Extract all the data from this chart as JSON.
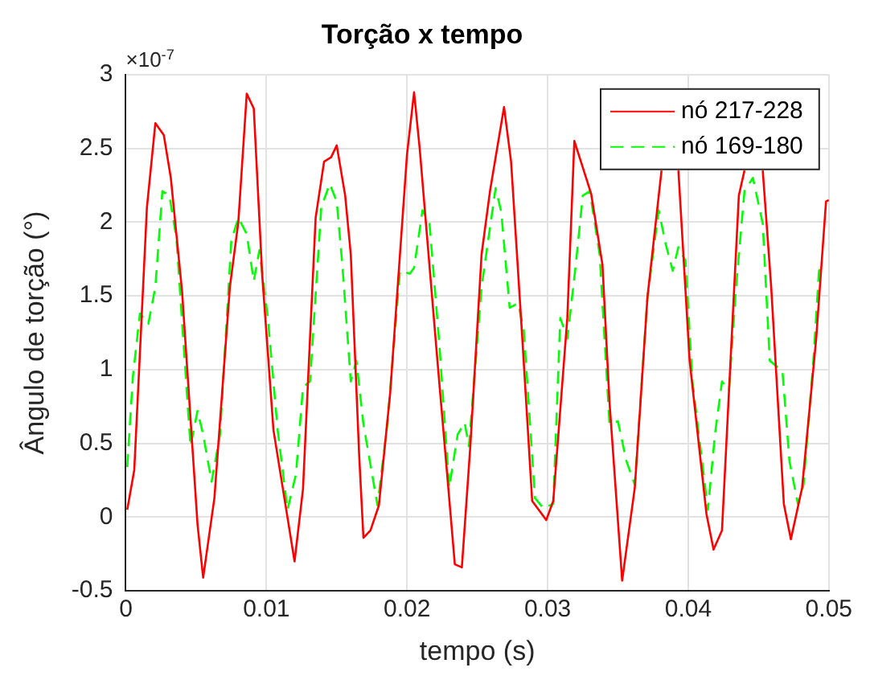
{
  "chart_data": {
    "type": "line",
    "title": "Torção x tempo",
    "xlabel": "tempo (s)",
    "ylabel": "Ângulo de torção (°)",
    "annotations": [
      "×10$^{-7}$"
    ],
    "xlim": [
      0,
      0.05
    ],
    "xticks": [
      0,
      0.01,
      0.02,
      0.03,
      0.04,
      0.05
    ],
    "ylim": [
      -0.5,
      3
    ],
    "yticks": [
      -0.5,
      0,
      0.5,
      1,
      1.5,
      2,
      2.5,
      3
    ],
    "grid": true,
    "legend": "top right",
    "marker": "none",
    "series": [
      {
        "name": "nó 217-228",
        "color": "#ff0000",
        "line_style": "solid",
        "x": [
          0.0001,
          0.0006,
          0.0015,
          0.0021,
          0.0027,
          0.0032,
          0.004,
          0.0051,
          0.0055,
          0.0063,
          0.0074,
          0.008,
          0.0086,
          0.0091,
          0.0097,
          0.0105,
          0.012,
          0.0126,
          0.0135,
          0.0141,
          0.0146,
          0.015,
          0.0156,
          0.016,
          0.0166,
          0.0169,
          0.0174,
          0.018,
          0.0188,
          0.02,
          0.0205,
          0.0209,
          0.0221,
          0.0234,
          0.0239,
          0.0245,
          0.0253,
          0.0259,
          0.0269,
          0.0274,
          0.0282,
          0.0289,
          0.0299,
          0.0304,
          0.0314,
          0.0319,
          0.0331,
          0.0339,
          0.0344,
          0.0353,
          0.0362,
          0.0371,
          0.0381,
          0.0387,
          0.0393,
          0.0401,
          0.0413,
          0.0418,
          0.0424,
          0.0436,
          0.044,
          0.0447,
          0.0453,
          0.0459,
          0.0468,
          0.0473,
          0.0481,
          0.0491,
          0.0498,
          0.05
        ],
        "values": [
          0.05,
          0.32,
          2.1,
          2.67,
          2.59,
          2.3,
          1.53,
          -0.05,
          -0.41,
          0.13,
          1.56,
          2.0,
          2.87,
          2.77,
          1.64,
          0.59,
          -0.3,
          0.19,
          2.03,
          2.41,
          2.44,
          2.52,
          2.18,
          1.78,
          0.41,
          -0.14,
          -0.09,
          0.08,
          0.84,
          2.46,
          2.88,
          2.5,
          1.13,
          -0.32,
          -0.34,
          0.48,
          1.78,
          2.21,
          2.78,
          2.41,
          1.21,
          0.11,
          -0.02,
          0.11,
          1.35,
          2.55,
          2.19,
          1.71,
          0.78,
          -0.43,
          0.2,
          1.49,
          2.35,
          null,
          2.35,
          1.06,
          0.02,
          -0.22,
          -0.09,
          2.18,
          2.35,
          null,
          2.35,
          1.56,
          0.09,
          -0.15,
          0.2,
          1.21,
          2.14,
          2.15
        ]
      },
      {
        "name": "nó 169-180",
        "color": "#00ff00",
        "line_style": "dashed",
        "x": [
          0.0001,
          0.0005,
          0.001,
          0.0016,
          0.0021,
          0.0026,
          0.0031,
          0.0036,
          0.0046,
          0.0051,
          0.0055,
          0.0061,
          0.0067,
          0.0075,
          0.008,
          0.0086,
          0.0091,
          0.0095,
          0.0101,
          0.0108,
          0.0115,
          0.0121,
          0.0126,
          0.0131,
          0.0139,
          0.0145,
          0.015,
          0.0154,
          0.016,
          0.0164,
          0.0169,
          0.0179,
          0.0186,
          0.0195,
          0.0202,
          0.0205,
          0.0211,
          0.0216,
          0.0223,
          0.023,
          0.0236,
          0.0241,
          0.0244,
          0.0253,
          0.0263,
          0.0267,
          0.0273,
          0.0279,
          0.0283,
          0.0291,
          0.0297,
          0.0304,
          0.0309,
          0.0314,
          0.032,
          0.0325,
          0.033,
          0.0337,
          0.0344,
          0.035,
          0.0356,
          0.0362,
          0.0371,
          0.0379,
          0.0384,
          0.0389,
          0.0393,
          0.0398,
          0.0403,
          0.0414,
          0.0419,
          0.0424,
          0.0429,
          0.0434,
          0.044,
          0.0446,
          0.0453,
          0.0458,
          0.0467,
          0.0472,
          0.0478,
          0.0482,
          0.0489,
          0.0493,
          0.0496
        ],
        "values": [
          0.34,
          0.95,
          1.38,
          1.31,
          1.56,
          2.21,
          2.18,
          1.89,
          0.48,
          0.72,
          0.56,
          0.24,
          0.56,
          1.87,
          2.03,
          1.92,
          1.6,
          1.81,
          1.35,
          0.59,
          0.05,
          0.29,
          0.88,
          0.92,
          2.1,
          2.26,
          2.14,
          1.71,
          0.92,
          1.06,
          0.63,
          0.08,
          0.63,
          1.67,
          1.65,
          1.69,
          2.08,
          1.99,
          1.17,
          0.2,
          0.56,
          0.64,
          0.48,
          1.56,
          2.23,
          2.07,
          1.42,
          1.45,
          1.27,
          0.13,
          0.06,
          0.09,
          1.35,
          1.21,
          1.71,
          2.18,
          2.21,
          1.78,
          0.63,
          0.65,
          0.38,
          0.22,
          1.49,
          2.08,
          1.85,
          1.67,
          1.83,
          1.74,
          0.92,
          0.05,
          0.56,
          0.92,
          0.86,
          1.56,
          2.21,
          2.3,
          1.99,
          1.06,
          0.99,
          0.38,
          0.09,
          0.22,
          1.06,
          1.67,
          1.71
        ]
      }
    ]
  }
}
